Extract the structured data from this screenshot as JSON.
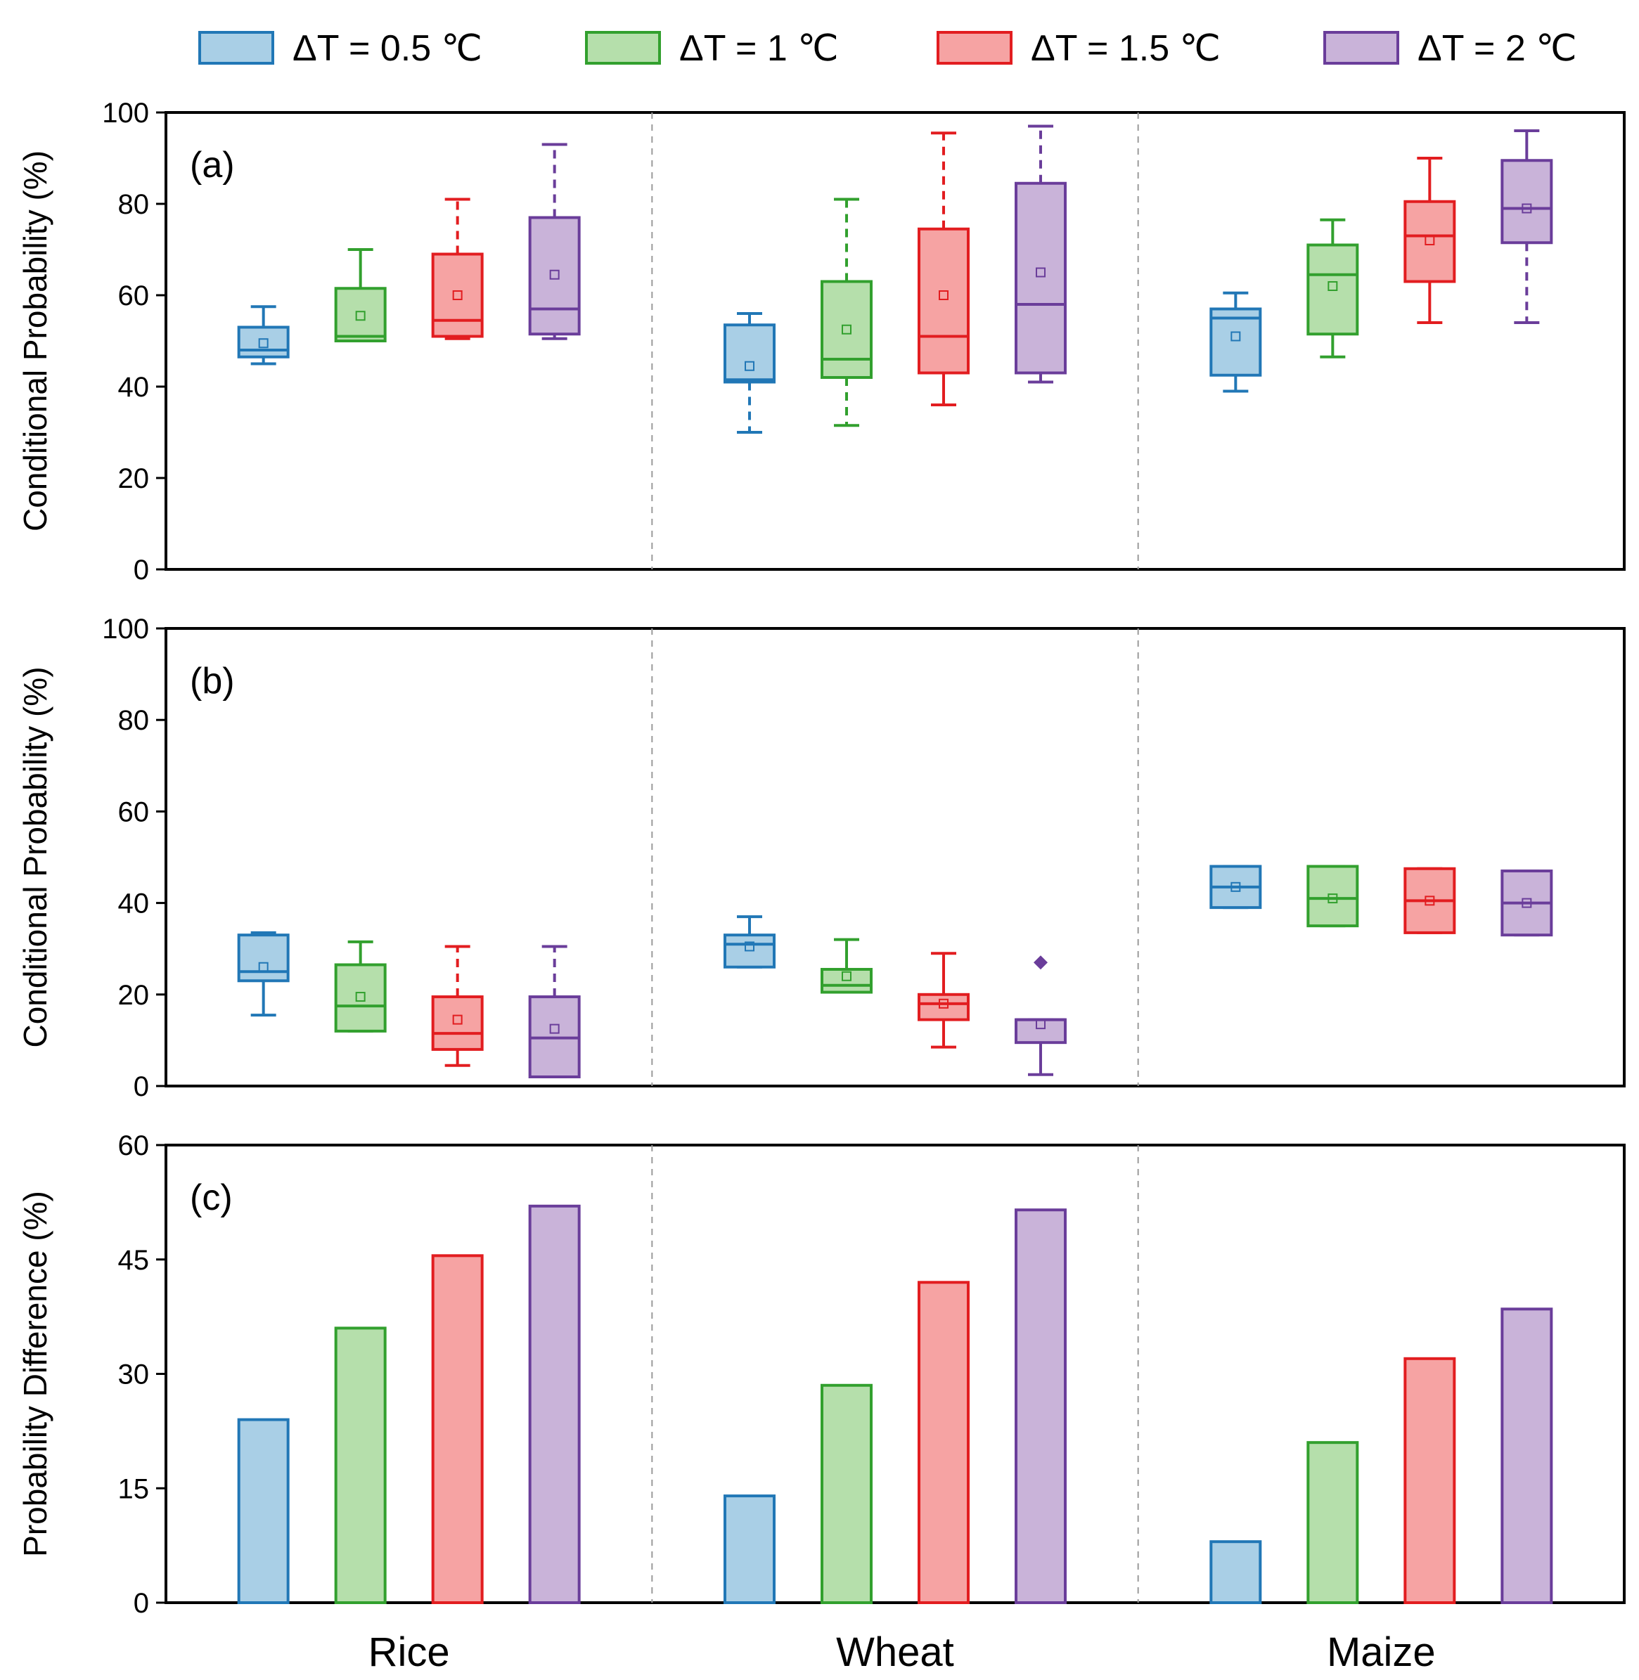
{
  "legend": [
    {
      "label": "ΔT = 0.5 ℃",
      "fill": "#a9cfe6",
      "stroke": "#2177b6"
    },
    {
      "label": "ΔT = 1 ℃",
      "fill": "#b5dfab",
      "stroke": "#32a02e"
    },
    {
      "label": "ΔT = 1.5 ℃",
      "fill": "#f6a3a3",
      "stroke": "#e21d20"
    },
    {
      "label": "ΔT = 2 ℃",
      "fill": "#c9b3d9",
      "stroke": "#6a3d9a"
    }
  ],
  "crops": [
    "Rice",
    "Wheat",
    "Maize"
  ],
  "chart_data": [
    {
      "type": "box",
      "panel_label": "(a)",
      "ylabel": "Conditional Probability (%)",
      "ylim": [
        0,
        100
      ],
      "yticks": [
        "0",
        "20",
        "40",
        "60",
        "80",
        "100"
      ],
      "categories": [
        "Rice",
        "Wheat",
        "Maize"
      ],
      "series": [
        {
          "name": "ΔT = 0.5 ℃",
          "boxes": [
            {
              "whisker_low": 45,
              "q1": 46.5,
              "median": 48,
              "q3": 53,
              "whisker_high": 57.5,
              "mean": 49.5
            },
            {
              "whisker_low": 30,
              "q1": 41,
              "median": 41.5,
              "q3": 53.5,
              "whisker_high": 56,
              "mean": 44.5
            },
            {
              "whisker_low": 39,
              "q1": 42.5,
              "median": 55,
              "q3": 57,
              "whisker_high": 60.5,
              "mean": 51
            }
          ]
        },
        {
          "name": "ΔT = 1 ℃",
          "boxes": [
            {
              "whisker_low": 50,
              "q1": 50,
              "median": 51,
              "q3": 61.5,
              "whisker_high": 70,
              "mean": 55.5
            },
            {
              "whisker_low": 31.5,
              "q1": 42,
              "median": 46,
              "q3": 63,
              "whisker_high": 81,
              "mean": 52.5
            },
            {
              "whisker_low": 46.5,
              "q1": 51.5,
              "median": 64.5,
              "q3": 71,
              "whisker_high": 76.5,
              "mean": 62
            }
          ]
        },
        {
          "name": "ΔT = 1.5 ℃",
          "boxes": [
            {
              "whisker_low": 50.5,
              "q1": 51,
              "median": 54.5,
              "q3": 69,
              "whisker_high": 81,
              "mean": 60
            },
            {
              "whisker_low": 36,
              "q1": 43,
              "median": 51,
              "q3": 74.5,
              "whisker_high": 95.5,
              "mean": 60
            },
            {
              "whisker_low": 54,
              "q1": 63,
              "median": 73,
              "q3": 80.5,
              "whisker_high": 90,
              "mean": 72
            }
          ]
        },
        {
          "name": "ΔT = 2 ℃",
          "boxes": [
            {
              "whisker_low": 50.5,
              "q1": 51.5,
              "median": 57,
              "q3": 77,
              "whisker_high": 93,
              "mean": 64.5
            },
            {
              "whisker_low": 41,
              "q1": 43,
              "median": 58,
              "q3": 84.5,
              "whisker_high": 97,
              "mean": 65
            },
            {
              "whisker_low": 54,
              "q1": 71.5,
              "median": 79,
              "q3": 89.5,
              "whisker_high": 96,
              "mean": 79
            }
          ]
        }
      ]
    },
    {
      "type": "box",
      "panel_label": "(b)",
      "ylabel": "Conditional Probability (%)",
      "ylim": [
        0,
        100
      ],
      "yticks": [
        "0",
        "20",
        "40",
        "60",
        "80",
        "100"
      ],
      "categories": [
        "Rice",
        "Wheat",
        "Maize"
      ],
      "series": [
        {
          "name": "ΔT = 0.5 ℃",
          "boxes": [
            {
              "whisker_low": 15.5,
              "q1": 23,
              "median": 25,
              "q3": 33,
              "whisker_high": 33.5,
              "mean": 26
            },
            {
              "whisker_low": 26,
              "q1": 26,
              "median": 31,
              "q3": 33,
              "whisker_high": 37,
              "mean": 30.5
            },
            {
              "whisker_low": 39,
              "q1": 39,
              "median": 43.5,
              "q3": 48,
              "whisker_high": 48,
              "mean": 43.5
            }
          ]
        },
        {
          "name": "ΔT = 1 ℃",
          "boxes": [
            {
              "whisker_low": 12,
              "q1": 12,
              "median": 17.5,
              "q3": 26.5,
              "whisker_high": 31.5,
              "mean": 19.5
            },
            {
              "whisker_low": 20.5,
              "q1": 20.5,
              "median": 22,
              "q3": 25.5,
              "whisker_high": 32,
              "mean": 24
            },
            {
              "whisker_low": 35,
              "q1": 35,
              "median": 41,
              "q3": 48,
              "whisker_high": 48,
              "mean": 41
            }
          ]
        },
        {
          "name": "ΔT = 1.5 ℃",
          "boxes": [
            {
              "whisker_low": 4.5,
              "q1": 8,
              "median": 11.5,
              "q3": 19.5,
              "whisker_high": 30.5,
              "mean": 14.5
            },
            {
              "whisker_low": 8.5,
              "q1": 14.5,
              "median": 18,
              "q3": 20,
              "whisker_high": 29,
              "mean": 18
            },
            {
              "whisker_low": 33.5,
              "q1": 33.5,
              "median": 40.5,
              "q3": 47.5,
              "whisker_high": 47.5,
              "mean": 40.5
            }
          ]
        },
        {
          "name": "ΔT = 2 ℃",
          "boxes": [
            {
              "whisker_low": 2,
              "q1": 2,
              "median": 10.5,
              "q3": 19.5,
              "whisker_high": 30.5,
              "mean": 12.5
            },
            {
              "whisker_low": 2.5,
              "q1": 9.5,
              "median": 14.5,
              "q3": 14.5,
              "whisker_high": 14.5,
              "mean": 13.5,
              "outlier": 27
            },
            {
              "whisker_low": 33,
              "q1": 33,
              "median": 40,
              "q3": 47,
              "whisker_high": 47,
              "mean": 40
            }
          ]
        }
      ]
    },
    {
      "type": "bar",
      "panel_label": "(c)",
      "ylabel": "Probability Difference (%)",
      "ylim": [
        0,
        60
      ],
      "yticks": [
        "0",
        "15",
        "30",
        "45",
        "60"
      ],
      "categories": [
        "Rice",
        "Wheat",
        "Maize"
      ],
      "series": [
        {
          "name": "ΔT = 0.5 ℃",
          "values": [
            24,
            14,
            8
          ]
        },
        {
          "name": "ΔT = 1 ℃",
          "values": [
            36,
            28.5,
            21
          ]
        },
        {
          "name": "ΔT = 1.5 ℃",
          "values": [
            45.5,
            42,
            32
          ]
        },
        {
          "name": "ΔT = 2 ℃",
          "values": [
            52,
            51.5,
            38.5
          ]
        }
      ]
    }
  ]
}
